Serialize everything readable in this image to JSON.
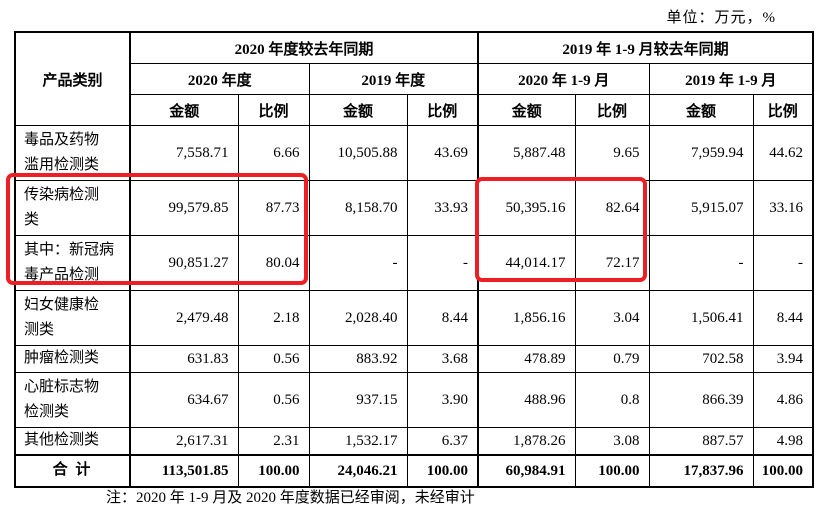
{
  "page": {
    "unit_label": "单位：万元，%",
    "note": "注：2020 年 1-9 月及 2020 年度数据已经审阅，未经审计"
  },
  "annotations": {
    "highlight_color": "#ed1f24",
    "highlights": [
      "2020年度-传染病及新冠行-金额比例",
      "2020年1-9月-传染病及新冠行-金额比例"
    ]
  },
  "table": {
    "product_header": "产品类别",
    "amount_label": "金额",
    "ratio_label": "比例",
    "groups": [
      {
        "label": "2020 年度较去年同期",
        "periods": [
          "2020 年度",
          "2019 年度"
        ]
      },
      {
        "label": "2019 年 1-9 月较去年同期",
        "periods": [
          "2020 年 1-9 月",
          "2019 年 1-9 月"
        ]
      }
    ],
    "rows": [
      {
        "category": "毒品及药物\n滥用检测类",
        "values": [
          "7,558.71",
          "6.66",
          "10,505.88",
          "43.69",
          "5,887.48",
          "9.65",
          "7,959.94",
          "44.62"
        ]
      },
      {
        "category": "传染病检测\n类",
        "values": [
          "99,579.85",
          "87.73",
          "8,158.70",
          "33.93",
          "50,395.16",
          "82.64",
          "5,915.07",
          "33.16"
        ]
      },
      {
        "category": "其中：新冠病\n毒产品检测",
        "values": [
          "90,851.27",
          "80.04",
          "-",
          "-",
          "44,014.17",
          "72.17",
          "-",
          "-"
        ]
      },
      {
        "category": "妇女健康检\n测类",
        "values": [
          "2,479.48",
          "2.18",
          "2,028.40",
          "8.44",
          "1,856.16",
          "3.04",
          "1,506.41",
          "8.44"
        ]
      },
      {
        "category": "肿瘤检测类",
        "values": [
          "631.83",
          "0.56",
          "883.92",
          "3.68",
          "478.89",
          "0.79",
          "702.58",
          "3.94"
        ]
      },
      {
        "category": "心脏标志物\n检测类",
        "values": [
          "634.67",
          "0.56",
          "937.15",
          "3.90",
          "488.96",
          "0.8",
          "866.39",
          "4.86"
        ]
      },
      {
        "category": "其他检测类",
        "values": [
          "2,617.31",
          "2.31",
          "1,532.17",
          "6.37",
          "1,878.26",
          "3.08",
          "887.57",
          "4.98"
        ]
      },
      {
        "category": "合 计",
        "is_total": true,
        "values": [
          "113,501.85",
          "100.00",
          "24,046.21",
          "100.00",
          "60,984.91",
          "100.00",
          "17,837.96",
          "100.00"
        ]
      }
    ]
  }
}
